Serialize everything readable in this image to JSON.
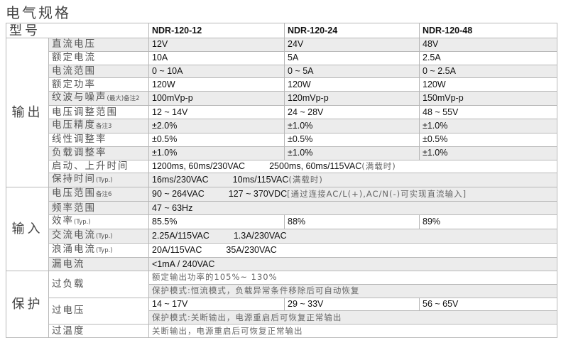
{
  "title": "电气规格",
  "header": {
    "label": "型号",
    "models": [
      "NDR-120-12",
      "NDR-120-24",
      "NDR-120-48"
    ]
  },
  "output": {
    "section": "输出",
    "rows": [
      {
        "label": "直流电压",
        "values": [
          "12V",
          "24V",
          "48V"
        ]
      },
      {
        "label": "额定电流",
        "values": [
          "10A",
          "5A",
          "2.5A"
        ]
      },
      {
        "label": "电流范围",
        "values": [
          "0 ~ 10A",
          "0 ~ 5A",
          "0 ~ 2.5A"
        ]
      },
      {
        "label": "额定功率",
        "values": [
          "120W",
          "120W",
          "120W"
        ]
      },
      {
        "label": "纹波与噪声",
        "note": "(最大)备注2",
        "values": [
          "100mVp-p",
          "120mVp-p",
          "150mVp-p"
        ]
      },
      {
        "label": "电压调整范围",
        "values": [
          "12 ~ 14V",
          "24 ~ 28V",
          "48 ~ 55V"
        ]
      },
      {
        "label": "电压精度",
        "note": "备注3",
        "values": [
          "±2.0%",
          "±1.0%",
          "±1.0%"
        ]
      },
      {
        "label": "线性调整率",
        "values": [
          "±0.5%",
          "±0.5%",
          "±0.5%"
        ]
      },
      {
        "label": "负载调整率",
        "values": [
          "±1.0%",
          "±1.0%",
          "±1.0%"
        ]
      },
      {
        "label": "启动、上升时间",
        "v1": "1200ms, 60ms/230VAC",
        "v2": "2500ms, 60ms/115VAC",
        "v2cn": "(满载时)"
      },
      {
        "label": "保持时间",
        "note": "(Typ.)",
        "v1": "16ms/230VAC",
        "v2": "10ms/115VAC",
        "v2cn": "(满载时)"
      }
    ]
  },
  "input": {
    "section": "输入",
    "rows": [
      {
        "label": "电压范围",
        "note": "备注6",
        "v1": "90 ~ 264VAC",
        "v2": "127 ~ 370VDC",
        "v2cn": "[通过连接AC/L(+),AC/N(-)可实现直流输入]"
      },
      {
        "label": "频率范围",
        "v1": "47 ~ 63Hz"
      },
      {
        "label": "效率",
        "note": "(Typ.)",
        "values": [
          "85.5%",
          "88%",
          "89%"
        ]
      },
      {
        "label": "交流电流",
        "note": "(Typ.)",
        "v1": "2.25A/115VAC",
        "v2": "1.3A/230VAC"
      },
      {
        "label": "浪涌电流",
        "note": "(Typ.)",
        "v1": "20A/115VAC",
        "v2": "35A/230VAC"
      },
      {
        "label": "漏电流",
        "v1": "<1mA / 240VAC"
      }
    ]
  },
  "protection": {
    "section": "保护",
    "overload": {
      "label": "过负载",
      "line1": "额定输出功率的105%~ 130%",
      "line2": "保护模式:恒流模式，负载异常条件移除后可自动恢复"
    },
    "overvoltage": {
      "label": "过电压",
      "values": [
        "14 ~ 17V",
        "29 ~ 33V",
        "56 ~ 65V"
      ],
      "line2": "保护模式:关断输出，电源重启后可恢复正常输出"
    },
    "overtemp": {
      "label": "过温度",
      "line1": "关断输出，电源重启后可恢复正常输出"
    }
  }
}
